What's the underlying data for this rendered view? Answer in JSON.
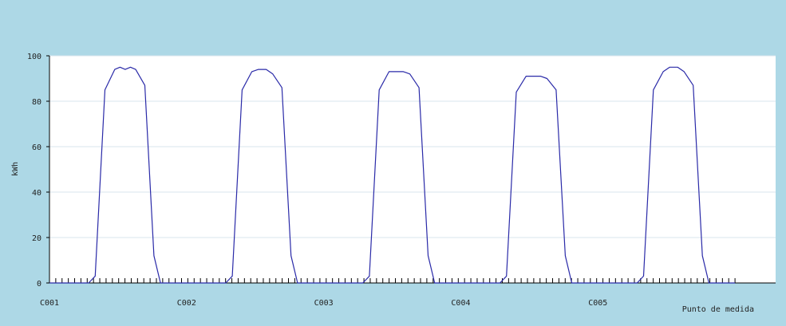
{
  "colors": {
    "frame_background": "#add8e6",
    "plot_background": "#ffffff",
    "gridline": "#d9e4ec",
    "series_line": "#2a2aa8",
    "axis": "#000000",
    "text": "#222222"
  },
  "chart_data": {
    "type": "line",
    "title": "",
    "xlabel": "Punto de medida",
    "ylabel": "kWh",
    "ylim": [
      0,
      100
    ],
    "yticks": [
      0,
      20,
      40,
      60,
      80,
      100
    ],
    "xlim": [
      0,
      110
    ],
    "x_tick_count": 110,
    "x_tick_span": [
      0,
      105
    ],
    "grid": {
      "horizontal": true,
      "vertical": false
    },
    "legend": "none",
    "categories": [
      {
        "label": "C001",
        "x": 0
      },
      {
        "label": "C002",
        "x": 21
      },
      {
        "label": "C003",
        "x": 42
      },
      {
        "label": "C004",
        "x": 63
      },
      {
        "label": "C005",
        "x": 84
      }
    ],
    "series": [
      {
        "points": [
          [
            0,
            0
          ],
          [
            6,
            0
          ],
          [
            7,
            3
          ],
          [
            8.5,
            85
          ],
          [
            10,
            94
          ],
          [
            10.8,
            95
          ],
          [
            11.6,
            94
          ],
          [
            12.4,
            95
          ],
          [
            13.2,
            94
          ],
          [
            14.6,
            87
          ],
          [
            16,
            12
          ],
          [
            17,
            0
          ],
          [
            27,
            0
          ],
          [
            28,
            3
          ],
          [
            29.5,
            85
          ],
          [
            31,
            93
          ],
          [
            32,
            94
          ],
          [
            33.2,
            94
          ],
          [
            34.2,
            92
          ],
          [
            35.6,
            86
          ],
          [
            37,
            12
          ],
          [
            38,
            0
          ],
          [
            48,
            0
          ],
          [
            49,
            3
          ],
          [
            50.5,
            85
          ],
          [
            52,
            93
          ],
          [
            53,
            93
          ],
          [
            54.2,
            93
          ],
          [
            55.2,
            92
          ],
          [
            56.6,
            86
          ],
          [
            58,
            12
          ],
          [
            59,
            0
          ],
          [
            69,
            0
          ],
          [
            70,
            3
          ],
          [
            71.5,
            84
          ],
          [
            73,
            91
          ],
          [
            74,
            91
          ],
          [
            75.2,
            91
          ],
          [
            76.2,
            90
          ],
          [
            77.6,
            85
          ],
          [
            79,
            12
          ],
          [
            80,
            0
          ],
          [
            90,
            0
          ],
          [
            91,
            3
          ],
          [
            92.5,
            85
          ],
          [
            94,
            93
          ],
          [
            95,
            95
          ],
          [
            96.2,
            95
          ],
          [
            97.2,
            93
          ],
          [
            98.6,
            87
          ],
          [
            100,
            12
          ],
          [
            101,
            0
          ],
          [
            105,
            0
          ]
        ]
      }
    ]
  }
}
